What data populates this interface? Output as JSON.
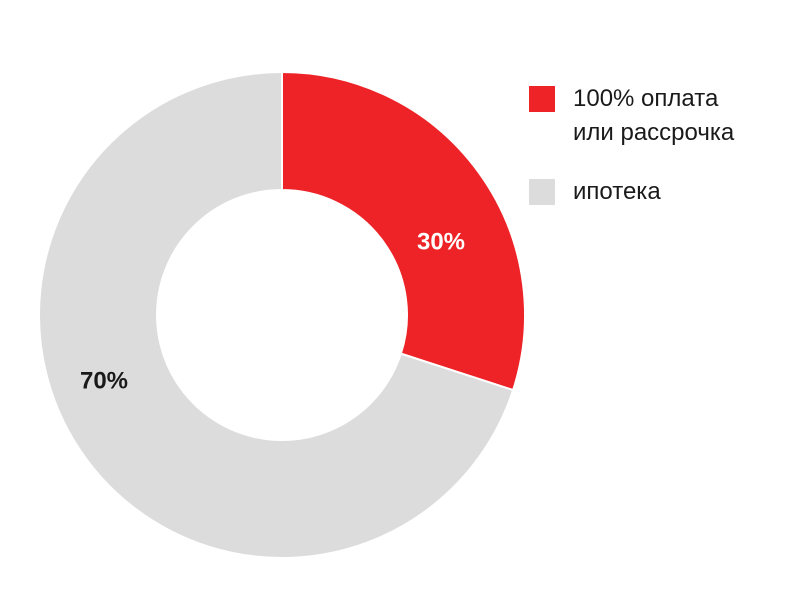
{
  "chart_data": {
    "type": "pie",
    "donut": true,
    "categories": [
      "100% оплата\nили рассрочка",
      "ипотека"
    ],
    "values": [
      30,
      70
    ],
    "labels": [
      "30%",
      "70%"
    ],
    "colors": [
      "#ed2327",
      "#dcdcdd"
    ],
    "label_colors": [
      "#ffffff",
      "#1a1a1a"
    ],
    "legend": "top-right",
    "title": ""
  }
}
